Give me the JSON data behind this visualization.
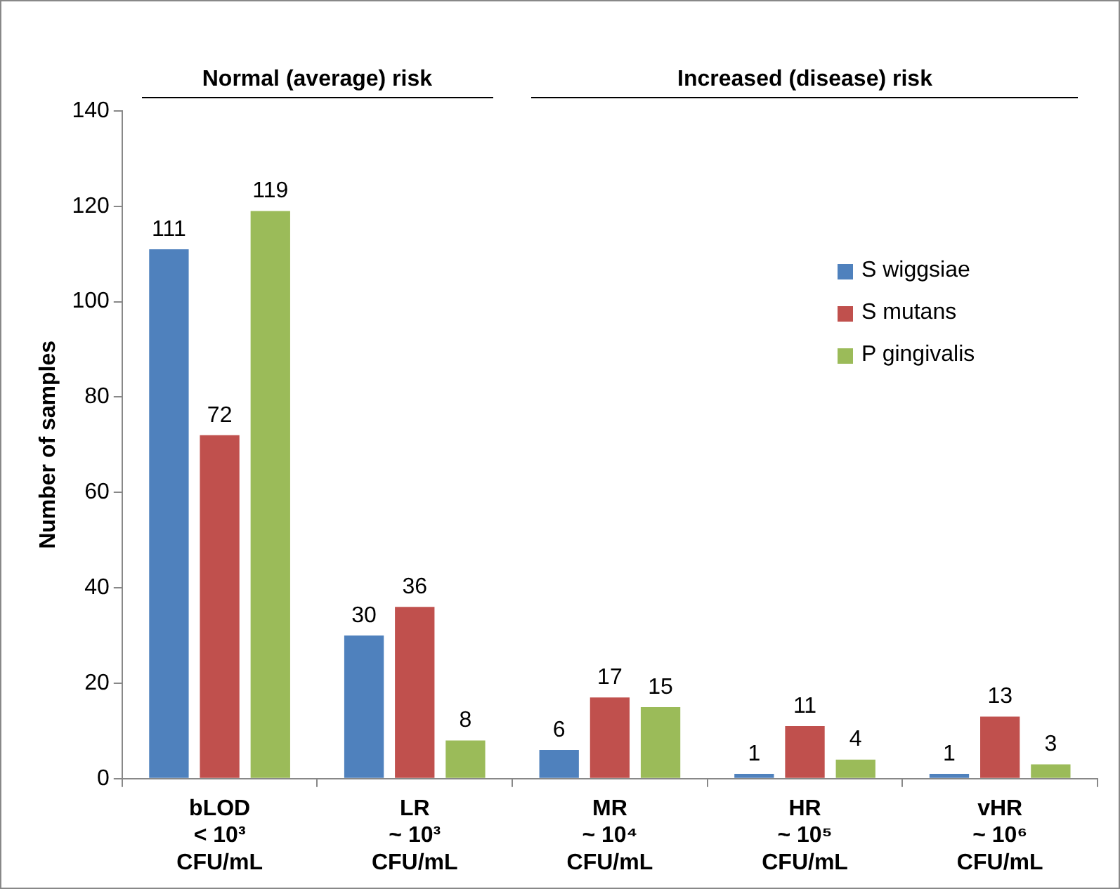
{
  "chart_data": {
    "type": "bar",
    "ylabel": "Number of samples",
    "categories": [
      "bLOD\n< 10³\nCFU/mL",
      "LR\n~ 10³\nCFU/mL",
      "MR\n~ 10⁴\nCFU/mL",
      "HR\n~ 10⁵\nCFU/mL",
      "vHR\n~ 10⁶\nCFU/mL"
    ],
    "series": [
      {
        "name": "S wiggsiae",
        "color": "#4f81bd",
        "values": [
          111,
          30,
          6,
          1,
          1
        ]
      },
      {
        "name": "S mutans",
        "color": "#c0504d",
        "values": [
          72,
          36,
          17,
          11,
          13
        ]
      },
      {
        "name": "P gingivalis",
        "color": "#9bbb59",
        "values": [
          119,
          8,
          15,
          4,
          3
        ]
      }
    ],
    "ylim": [
      0,
      140
    ],
    "yticks": [
      0,
      20,
      40,
      60,
      80,
      100,
      120,
      140
    ],
    "annotations": [
      "Normal (average) risk",
      "Increased (disease) risk"
    ],
    "data_labels": true,
    "grid": false,
    "legend": "right"
  }
}
